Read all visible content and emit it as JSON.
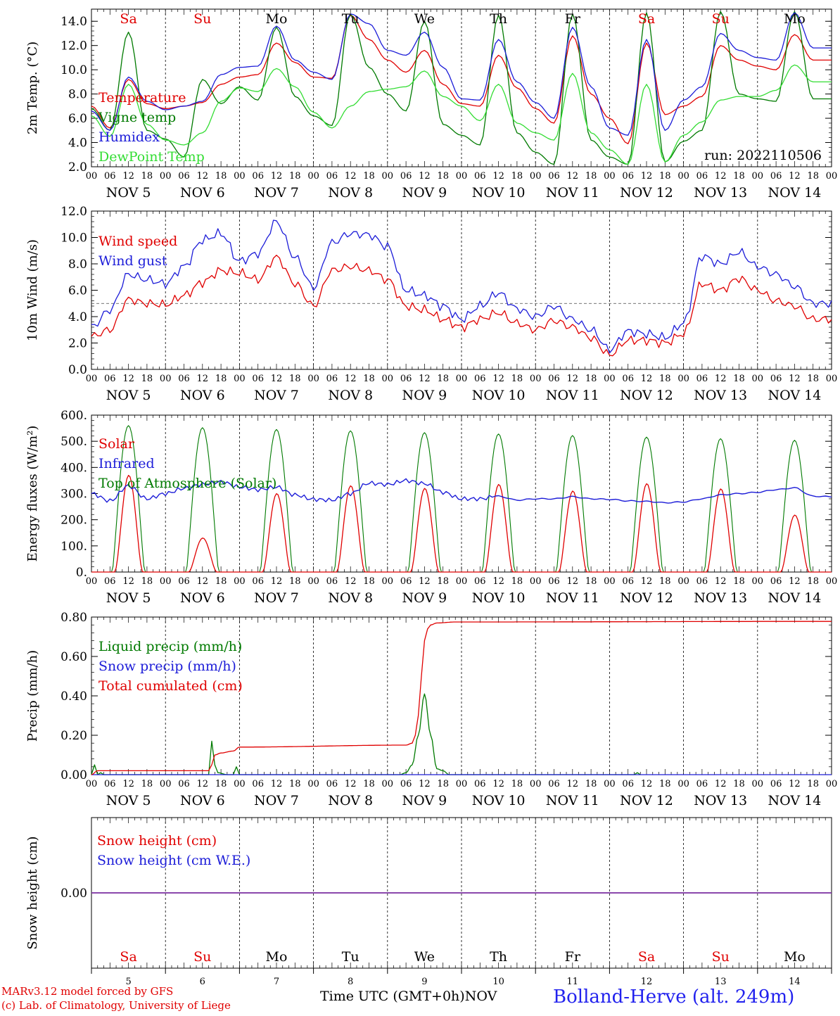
{
  "footer": {
    "model_line": "MARv3.12 model forced by GFS",
    "credit_line": "(c) Lab. of Climatology, University of Liege",
    "axis_caption": "Time UTC (GMT+0h)",
    "month_caption": "NOV",
    "station": "Bolland-Herve (alt. 249m)"
  },
  "colors": {
    "red": "#e00000",
    "green": "#007a00",
    "blue": "#1c1cd8",
    "lightgreen": "#33dd33",
    "purple": "#7a2ea0"
  },
  "chart_data": [
    {
      "type": "line",
      "ylabel": "2m Temp. (°C)",
      "ylim": [
        2.0,
        15.0
      ],
      "yticks": [
        "2.0",
        "4.0",
        "6.0",
        "8.0",
        "10.0",
        "12.0",
        "14.0"
      ],
      "run_label": "run: 2022110506",
      "x_hours": [
        0,
        6,
        12,
        18,
        24,
        30,
        36,
        42,
        48,
        54,
        60,
        66,
        72,
        78,
        84,
        90,
        96,
        102,
        108,
        114,
        120,
        126,
        132,
        138,
        144,
        150,
        156,
        162,
        168,
        174,
        180,
        186,
        192,
        198,
        204,
        210,
        216,
        222,
        228,
        234
      ],
      "legend": [
        "Temperature",
        "Vigne temp",
        "Humidex",
        "DewPoint Temp"
      ],
      "series": [
        {
          "name": "Temperature",
          "color": "red",
          "values": [
            7.0,
            5.2,
            9.2,
            7.2,
            6.8,
            7.0,
            7.3,
            8.8,
            9.4,
            9.6,
            12.2,
            10.6,
            9.4,
            9.3,
            14.5,
            12.5,
            10.8,
            9.8,
            11.6,
            8.8,
            7.2,
            7.0,
            11.2,
            8.5,
            6.8,
            5.6,
            12.8,
            8.0,
            6.0,
            3.9,
            12.2,
            6.3,
            7.0,
            7.8,
            12.0,
            10.8,
            10.3,
            10.0,
            12.9,
            10.8
          ]
        },
        {
          "name": "Vigne temp",
          "color": "green",
          "values": [
            6.8,
            5.0,
            13.1,
            5.0,
            4.3,
            2.8,
            9.2,
            7.2,
            8.6,
            7.5,
            13.5,
            7.8,
            6.2,
            5.4,
            14.6,
            10.2,
            8.0,
            6.6,
            14.0,
            5.5,
            4.6,
            3.8,
            14.5,
            4.8,
            3.2,
            2.2,
            14.6,
            4.2,
            2.8,
            2.2,
            14.7,
            2.4,
            4.1,
            5.0,
            14.8,
            8.0,
            7.6,
            7.4,
            14.8,
            7.6
          ]
        },
        {
          "name": "Humidex",
          "color": "blue",
          "values": [
            6.6,
            5.0,
            9.4,
            7.4,
            6.7,
            7.0,
            7.4,
            9.6,
            10.2,
            10.3,
            13.6,
            10.8,
            9.8,
            9.2,
            14.6,
            13.8,
            11.6,
            11.2,
            13.1,
            10.2,
            7.6,
            7.5,
            12.5,
            9.0,
            7.3,
            6.0,
            13.5,
            8.6,
            5.2,
            4.6,
            12.5,
            5.0,
            7.5,
            8.6,
            13.0,
            11.6,
            11.0,
            10.8,
            14.7,
            11.8
          ]
        },
        {
          "name": "DewPoint Temp",
          "color": "lightgreen",
          "values": [
            6.2,
            4.5,
            8.8,
            5.5,
            4.2,
            3.8,
            4.8,
            7.4,
            8.5,
            8.2,
            10.1,
            8.6,
            6.5,
            5.2,
            7.0,
            8.2,
            8.4,
            8.6,
            9.9,
            7.8,
            7.0,
            5.8,
            8.8,
            5.6,
            4.8,
            4.2,
            9.7,
            4.8,
            3.4,
            2.2,
            8.8,
            2.4,
            4.6,
            5.7,
            7.5,
            7.8,
            7.8,
            8.3,
            10.4,
            9.0
          ]
        }
      ]
    },
    {
      "type": "line",
      "ylabel": "10m Wind (m/s)",
      "ylim": [
        0.0,
        12.0
      ],
      "yticks": [
        "0.0",
        "2.0",
        "4.0",
        "6.0",
        "8.0",
        "10.0",
        "12.0"
      ],
      "ref_line": 5.0,
      "x_hours": [
        0,
        6,
        12,
        18,
        24,
        30,
        36,
        42,
        48,
        54,
        60,
        66,
        72,
        78,
        84,
        90,
        96,
        102,
        108,
        114,
        120,
        126,
        132,
        138,
        144,
        150,
        156,
        162,
        168,
        174,
        180,
        186,
        192,
        198,
        204,
        210,
        216,
        222,
        228,
        234
      ],
      "legend": [
        "Wind speed",
        "Wind gust"
      ],
      "series": [
        {
          "name": "Wind speed",
          "color": "red",
          "values": [
            2.5,
            3.0,
            5.3,
            5.0,
            4.9,
            5.6,
            6.6,
            7.5,
            7.3,
            6.8,
            8.5,
            6.5,
            4.8,
            7.5,
            7.8,
            7.5,
            6.8,
            4.8,
            4.5,
            3.8,
            3.2,
            3.8,
            4.3,
            3.5,
            3.0,
            3.7,
            3.2,
            2.4,
            1.1,
            2.2,
            2.2,
            2.0,
            2.7,
            6.5,
            6.0,
            6.9,
            6.0,
            5.2,
            4.8,
            3.8
          ]
        },
        {
          "name": "Wind gust",
          "color": "blue",
          "values": [
            3.2,
            4.5,
            7.2,
            6.8,
            6.5,
            7.8,
            9.8,
            10.3,
            8.2,
            8.8,
            11.2,
            8.5,
            6.2,
            9.6,
            10.3,
            10.2,
            9.3,
            6.0,
            5.6,
            4.8,
            3.8,
            4.8,
            5.8,
            4.6,
            4.0,
            4.8,
            3.8,
            3.0,
            1.5,
            2.9,
            2.7,
            2.4,
            3.5,
            8.6,
            8.0,
            8.9,
            7.8,
            7.2,
            6.3,
            5.0
          ]
        }
      ]
    },
    {
      "type": "line",
      "ylabel": "Energy fluxes (W/m²)",
      "ylim": [
        0,
        600
      ],
      "yticks": [
        "0.",
        "100.",
        "200.",
        "300.",
        "400.",
        "500.",
        "600."
      ],
      "legend": [
        "Solar",
        "Infrared",
        "Top of Atmosphere (Solar)"
      ],
      "toa_peaks": [
        560,
        552,
        545,
        540,
        533,
        528,
        522,
        516,
        510,
        504
      ],
      "solar_peaks": [
        370,
        130,
        300,
        330,
        320,
        335,
        310,
        338,
        318,
        218
      ],
      "infrared": {
        "x_hours": [
          0,
          6,
          12,
          18,
          24,
          30,
          36,
          42,
          48,
          54,
          60,
          66,
          72,
          78,
          84,
          90,
          96,
          102,
          108,
          114,
          120,
          126,
          132,
          138,
          144,
          150,
          156,
          162,
          168,
          174,
          180,
          186,
          192,
          198,
          204,
          210,
          216,
          222,
          228,
          234,
          240
        ],
        "values": [
          300,
          272,
          330,
          280,
          300,
          320,
          335,
          345,
          325,
          315,
          325,
          295,
          278,
          275,
          300,
          340,
          335,
          350,
          338,
          305,
          280,
          280,
          290,
          275,
          280,
          280,
          288,
          280,
          278,
          272,
          270,
          265,
          268,
          280,
          295,
          300,
          305,
          315,
          322,
          290,
          288
        ]
      },
      "series": [
        {
          "name": "Solar",
          "color": "red"
        },
        {
          "name": "Infrared",
          "color": "blue"
        },
        {
          "name": "Top of Atmosphere (Solar)",
          "color": "green"
        }
      ]
    },
    {
      "type": "line",
      "ylabel": "Precip (mm/h)",
      "ylim": [
        0.0,
        0.8
      ],
      "yticks": [
        "0.00",
        "0.20",
        "0.40",
        "0.60",
        "0.80"
      ],
      "legend": [
        "Liquid precip (mm/h)",
        "Snow precip (mm/h)",
        "Total cumulated (cm)"
      ],
      "series": [
        {
          "name": "Liquid precip (mm/h)",
          "color": "green",
          "x_hours": [
            0,
            1,
            2,
            3,
            4,
            38,
            39,
            40,
            41,
            44,
            46,
            47,
            48,
            49,
            50,
            100,
            102,
            104,
            106,
            108,
            110,
            112,
            114,
            116,
            120,
            176,
            177,
            178
          ],
          "values": [
            0.0,
            0.05,
            0.0,
            0.01,
            0.0,
            0.0,
            0.17,
            0.05,
            0.01,
            0.0,
            0.0,
            0.04,
            0.0,
            0.0,
            0.0,
            0.0,
            0.01,
            0.05,
            0.2,
            0.41,
            0.2,
            0.03,
            0.02,
            0.0,
            0.0,
            0.0,
            0.01,
            0.0
          ]
        },
        {
          "name": "Snow precip (mm/h)",
          "color": "blue",
          "x_hours": [
            0,
            240
          ],
          "values": [
            0.0,
            0.0
          ]
        },
        {
          "name": "Total cumulated (cm)",
          "color": "red",
          "x_hours": [
            0,
            2,
            38,
            39,
            40,
            42,
            46,
            48,
            102,
            104,
            105,
            106,
            107,
            108,
            109,
            110,
            112,
            118,
            240
          ],
          "values": [
            0.0,
            0.02,
            0.02,
            0.05,
            0.1,
            0.11,
            0.12,
            0.14,
            0.15,
            0.16,
            0.2,
            0.3,
            0.5,
            0.68,
            0.74,
            0.76,
            0.77,
            0.775,
            0.778
          ]
        }
      ]
    },
    {
      "type": "line",
      "ylabel": "Snow height (cm)",
      "ylim": [
        -1,
        1
      ],
      "yticks": [
        "0.00"
      ],
      "legend": [
        "Snow height (cm)",
        "Snow height (cm W.E.)"
      ],
      "series": [
        {
          "name": "Snow height (cm)",
          "color": "red",
          "x_hours": [
            0,
            240
          ],
          "values": [
            0,
            0
          ]
        },
        {
          "name": "Snow height (cm W.E.)",
          "color": "blue",
          "x_hours": [
            0,
            240
          ],
          "values": [
            0,
            0
          ]
        }
      ]
    }
  ],
  "time_axis": {
    "hour_ticks": [
      "00",
      "06",
      "12",
      "18"
    ],
    "date_labels": [
      "NOV  5",
      "NOV  6",
      "NOV  7",
      "NOV  8",
      "NOV  9",
      "NOV 10",
      "NOV 11",
      "NOV 12",
      "NOV 13",
      "NOV 14"
    ],
    "day_names": [
      "Sa",
      "Su",
      "Mo",
      "Tu",
      "We",
      "Th",
      "Fr",
      "Sa",
      "Su",
      "Mo"
    ],
    "weekend": [
      true,
      true,
      false,
      false,
      false,
      false,
      false,
      true,
      true,
      false
    ],
    "day_numbers": [
      "5",
      "6",
      "7",
      "8",
      "9",
      "10",
      "11",
      "12",
      "13",
      "14"
    ]
  }
}
